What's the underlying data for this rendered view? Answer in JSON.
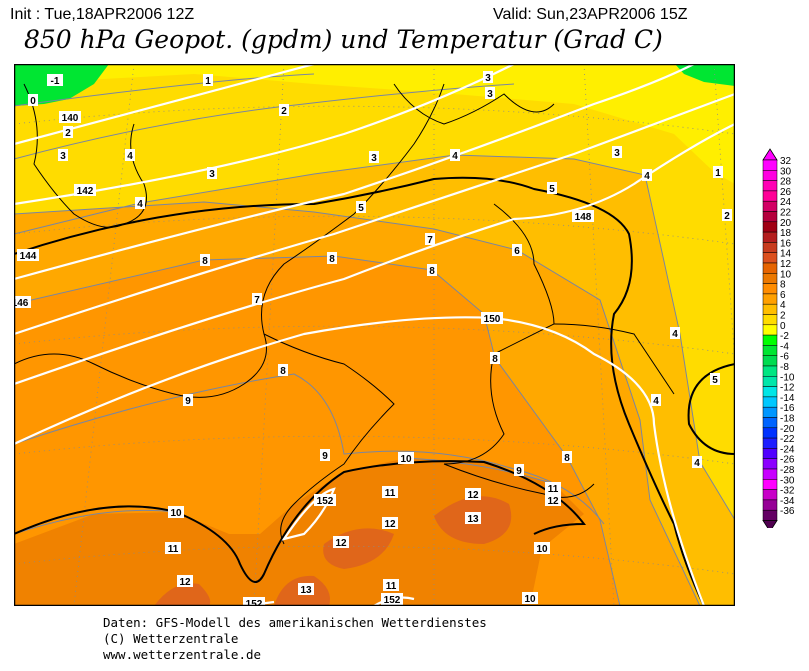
{
  "header": {
    "init": "Init : Tue,18APR2006 12Z",
    "valid": "Valid: Sun,23APR2006 15Z",
    "title": "850 hPa Geopot. (gpdm) und Temperatur (Grad C)"
  },
  "map": {
    "temperature_labels": [
      "-1",
      "0",
      "1",
      "2",
      "2",
      "3",
      "3",
      "4",
      "4",
      "3",
      "3",
      "3",
      "4",
      "3",
      "4",
      "1",
      "2",
      "5",
      "5",
      "7",
      "6",
      "8",
      "8",
      "8",
      "7",
      "4",
      "5",
      "4",
      "8",
      "8",
      "9",
      "9",
      "10",
      "9",
      "8",
      "4",
      "10",
      "11",
      "12",
      "11",
      "12",
      "13",
      "12",
      "12",
      "10",
      "11",
      "12",
      "13",
      "11",
      "10"
    ],
    "geopotential_labels": [
      "140",
      "142",
      "144",
      "146",
      "148",
      "150",
      "152",
      "152",
      "152"
    ],
    "colors": {
      "t_2_4": "#ffdc00",
      "t_0_2": "#ffef00",
      "t_4_6": "#ffbe00",
      "t_6_8": "#ffa800",
      "t_8_10": "#ff9600",
      "t_10_12": "#f08200",
      "t_12_14": "#e0661a",
      "t_below_0": "#00e632",
      "geopotential": "#ffffff"
    }
  },
  "colorbar": {
    "labels": [
      "32",
      "30",
      "28",
      "26",
      "24",
      "22",
      "20",
      "18",
      "16",
      "14",
      "12",
      "10",
      "8",
      "6",
      "4",
      "2",
      "0",
      "-2",
      "-4",
      "-6",
      "-8",
      "-10",
      "-12",
      "-14",
      "-16",
      "-18",
      "-20",
      "-22",
      "-24",
      "-26",
      "-28",
      "-30",
      "-32",
      "-34",
      "-36"
    ],
    "colors": [
      "#ff00ff",
      "#ff00e0",
      "#ff00b4",
      "#ff0096",
      "#d20064",
      "#b4003c",
      "#a00014",
      "#b41e1e",
      "#c83c1e",
      "#dc501e",
      "#e66400",
      "#eb7800",
      "#ff8c00",
      "#ffa000",
      "#ffbe00",
      "#ffdc00",
      "#ffff00",
      "#00ff00",
      "#00e632",
      "#00dc50",
      "#00e682",
      "#00e6aa",
      "#00e6e6",
      "#00c8ff",
      "#0096ff",
      "#0064ff",
      "#0032ff",
      "#1e1eff",
      "#5000ff",
      "#8c00ff",
      "#c800ff",
      "#ff00ff",
      "#c800c8",
      "#960096",
      "#640064"
    ],
    "top_color": "#ff00ff",
    "bottom_color": "#500050"
  },
  "footer": {
    "line1": "Daten: GFS-Modell des amerikanischen Wetterdienstes",
    "line2": "(C) Wetterzentrale",
    "line3": "www.wetterzentrale.de"
  }
}
